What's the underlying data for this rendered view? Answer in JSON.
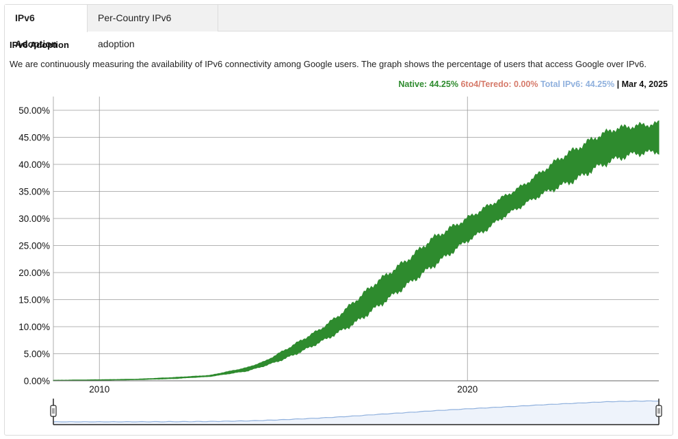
{
  "tabs": [
    {
      "label": "IPv6 Adoption",
      "active": true
    },
    {
      "label": "Per-Country IPv6 adoption",
      "active": false
    }
  ],
  "section": {
    "title": "IPv6 Adoption",
    "description": "We are continuously measuring the availability of IPv6 connectivity among Google users. The graph shows the percentage of users that access Google over IPv6."
  },
  "legend": {
    "native": "Native: 44.25%",
    "teredo": "6to4/Teredo: 0.00%",
    "total": "Total IPv6: 44.25%",
    "separator": "|",
    "date": "Mar 4, 2025",
    "colors": {
      "native": "#2e8b2e",
      "teredo": "#d67a6a",
      "total": "#8fb0dd"
    }
  },
  "chart_data": {
    "type": "area",
    "title": "",
    "ylabel": "",
    "xlabel": "",
    "ylim": [
      0,
      50
    ],
    "xlim": [
      2008.75,
      2025.2
    ],
    "yticks": [
      "0.00%",
      "5.00%",
      "10.00%",
      "15.00%",
      "20.00%",
      "25.00%",
      "30.00%",
      "35.00%",
      "40.00%",
      "45.00%",
      "50.00%"
    ],
    "xticks": [
      {
        "year": 2010,
        "label": "2010"
      },
      {
        "year": 2020,
        "label": "2020"
      }
    ],
    "grid": true,
    "series": [
      {
        "name": "Native",
        "color": "#2e8b2e",
        "x": [
          2008.75,
          2010,
          2011,
          2012,
          2013,
          2014,
          2014.5,
          2015,
          2015.5,
          2016,
          2016.5,
          2017,
          2017.5,
          2018,
          2018.5,
          2019,
          2019.5,
          2020,
          2020.5,
          2021,
          2021.5,
          2022,
          2022.5,
          2023,
          2023.5,
          2024,
          2024.5,
          2025.2
        ],
        "low": [
          0.0,
          0.1,
          0.2,
          0.4,
          0.8,
          1.8,
          2.8,
          4.0,
          5.5,
          7.2,
          9.0,
          11.0,
          13.5,
          16.0,
          18.5,
          21.0,
          23.5,
          26.0,
          28.0,
          30.5,
          32.5,
          34.5,
          36.0,
          37.5,
          39.5,
          41.0,
          42.0,
          42.5
        ],
        "high": [
          0.1,
          0.2,
          0.3,
          0.6,
          1.0,
          2.4,
          3.6,
          5.5,
          7.5,
          9.5,
          12.0,
          15.0,
          18.0,
          20.5,
          23.0,
          26.0,
          28.0,
          30.0,
          32.0,
          34.0,
          36.0,
          38.5,
          41.0,
          43.0,
          45.0,
          46.5,
          47.0,
          47.5
        ]
      },
      {
        "name": "6to4/Teredo",
        "color": "#d67a6a",
        "x": [
          2008.75,
          2025.2
        ],
        "low": [
          0.0,
          0.0
        ],
        "high": [
          0.0,
          0.0
        ]
      }
    ]
  },
  "navigator": {
    "line_color": "#8fb0dd",
    "fill_color": "#eef3fb"
  }
}
